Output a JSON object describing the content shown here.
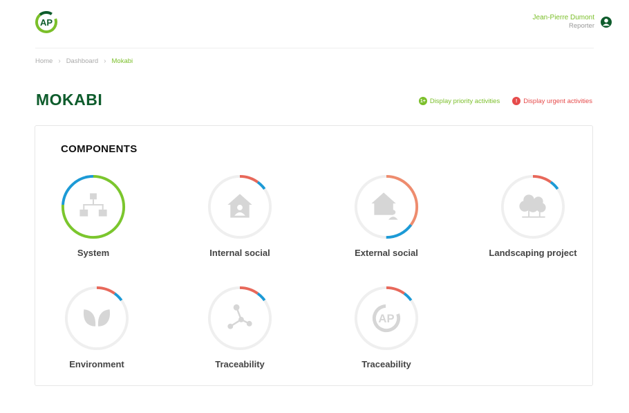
{
  "header": {
    "logo_icon": "ap-logo-icon",
    "user": {
      "name": "Jean-Pierre Dumont",
      "role": "Reporter",
      "icon": "user-circle-icon"
    }
  },
  "breadcrumb": [
    {
      "label": "Home"
    },
    {
      "label": "Dashboard"
    },
    {
      "label": "Mokabi"
    }
  ],
  "page": {
    "title": "MOKABI",
    "filters": {
      "priority": {
        "badge": "1+",
        "label": "Display priority activities"
      },
      "urgent": {
        "badge": "!",
        "label": "Display urgent activities"
      }
    }
  },
  "components": {
    "title": "COMPONENTS",
    "items": [
      {
        "label": "System",
        "icon": "hierarchy-icon",
        "progress": [
          {
            "color": "#7bc62d",
            "start": 0,
            "end": 0.76
          },
          {
            "color": "#1c9ad6",
            "start": 0.76,
            "end": 1
          }
        ]
      },
      {
        "label": "Internal social",
        "icon": "house-person-icon",
        "progress": [
          {
            "color": "#e8685a",
            "start": 0,
            "end": 0.1
          },
          {
            "color": "#1c9ad6",
            "start": 0.1,
            "end": 0.15
          }
        ]
      },
      {
        "label": "External social",
        "icon": "house-person-icon",
        "progress": [
          {
            "color": "#ee8c6e",
            "start": 0,
            "end": 0.35
          },
          {
            "color": "#1c9ad6",
            "start": 0.35,
            "end": 0.5
          }
        ]
      },
      {
        "label": "Landscaping project",
        "icon": "trees-icon",
        "progress": [
          {
            "color": "#e8685a",
            "start": 0,
            "end": 0.1
          },
          {
            "color": "#1c9ad6",
            "start": 0.1,
            "end": 0.15
          }
        ]
      },
      {
        "label": "Environment",
        "icon": "leaves-icon",
        "progress": [
          {
            "color": "#e8685a",
            "start": 0,
            "end": 0.1
          },
          {
            "color": "#1c9ad6",
            "start": 0.1,
            "end": 0.15
          }
        ]
      },
      {
        "label": "Traceability",
        "icon": "share-nodes-icon",
        "progress": [
          {
            "color": "#e8685a",
            "start": 0,
            "end": 0.1
          },
          {
            "color": "#1c9ad6",
            "start": 0.1,
            "end": 0.15
          }
        ]
      },
      {
        "label": "Traceability",
        "icon": "ap-logo-icon",
        "progress": [
          {
            "color": "#e8685a",
            "start": 0,
            "end": 0.1
          },
          {
            "color": "#1c9ad6",
            "start": 0.1,
            "end": 0.15
          }
        ]
      }
    ]
  }
}
